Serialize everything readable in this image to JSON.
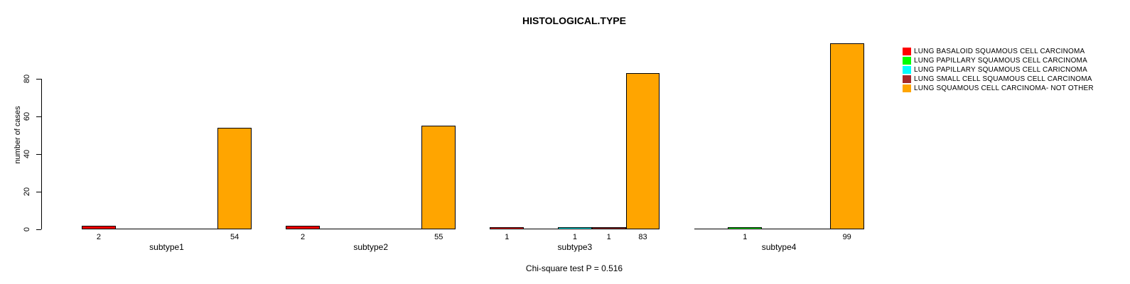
{
  "chart_data": {
    "type": "bar",
    "grouped": true,
    "title": "HISTOLOGICAL.TYPE",
    "xlabel": "",
    "ylabel": "number of cases",
    "annotation": "Chi-square test P = 0.516",
    "categories": [
      "subtype1",
      "subtype2",
      "subtype3",
      "subtype4"
    ],
    "series": [
      {
        "name": "LUNG BASALOID SQUAMOUS CELL CARCINOMA",
        "color": "#FF0000",
        "values": [
          2,
          2,
          1,
          0
        ]
      },
      {
        "name": "LUNG PAPILLARY SQUAMOUS CELL CARCINOMA",
        "color": "#00FF00",
        "values": [
          0,
          0,
          0,
          1
        ]
      },
      {
        "name": "LUNG PAPILLARY SQUAMOUS CELL CARICNOMA",
        "color": "#00FFFF",
        "values": [
          0,
          0,
          1,
          0
        ]
      },
      {
        "name": "LUNG SMALL CELL SQUAMOUS CELL CARCINOMA",
        "color": "#A52A2A",
        "values": [
          0,
          0,
          1,
          0
        ]
      },
      {
        "name": "LUNG SQUAMOUS CELL CARCINOMA- NOT OTHER",
        "color": "#FFA500",
        "values": [
          54,
          55,
          83,
          99
        ]
      }
    ],
    "yticks": [
      0,
      20,
      40,
      60,
      80
    ],
    "ylim": [
      0,
      100
    ],
    "grid": false,
    "legend_position": "top-right",
    "bar_value_labels": true,
    "axis_color": "#000000",
    "text_color": "#000000",
    "background_color": "#FFFFFF"
  }
}
